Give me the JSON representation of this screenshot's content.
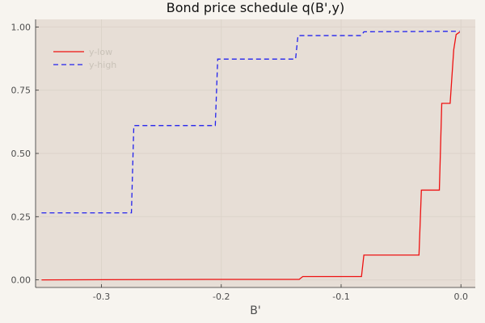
{
  "chart_data": {
    "type": "line",
    "title": "Bond price schedule q(B',y)",
    "xlabel": "B'",
    "ylabel": "",
    "xlim": [
      -0.355,
      0.012
    ],
    "ylim": [
      -0.03,
      1.03
    ],
    "xticks": [
      {
        "value": -0.3,
        "label": "-0.3"
      },
      {
        "value": -0.2,
        "label": "-0.2"
      },
      {
        "value": -0.1,
        "label": "-0.1"
      },
      {
        "value": 0.0,
        "label": "0.0"
      }
    ],
    "yticks": [
      {
        "value": 0.0,
        "label": "0.00"
      },
      {
        "value": 0.25,
        "label": "0.25"
      },
      {
        "value": 0.5,
        "label": "0.50"
      },
      {
        "value": 0.75,
        "label": "0.75"
      },
      {
        "value": 1.0,
        "label": "1.00"
      }
    ],
    "grid": true,
    "legend_position": "top-left",
    "series": [
      {
        "name": "y-low",
        "color": "#ee1111",
        "dash": "solid",
        "x": [
          -0.35,
          -0.205,
          -0.135,
          -0.132,
          -0.083,
          -0.081,
          -0.035,
          -0.033,
          -0.018,
          -0.016,
          -0.009,
          -0.006,
          -0.004,
          -0.001
        ],
        "y": [
          0.0,
          0.002,
          0.002,
          0.013,
          0.013,
          0.098,
          0.098,
          0.355,
          0.355,
          0.698,
          0.698,
          0.91,
          0.97,
          0.98
        ]
      },
      {
        "name": "y-high",
        "color": "#2222ee",
        "dash": "dashed",
        "x": [
          -0.35,
          -0.275,
          -0.273,
          -0.205,
          -0.203,
          -0.138,
          -0.136,
          -0.083,
          -0.081,
          -0.001
        ],
        "y": [
          0.265,
          0.265,
          0.61,
          0.61,
          0.873,
          0.873,
          0.966,
          0.966,
          0.981,
          0.983
        ]
      }
    ]
  }
}
